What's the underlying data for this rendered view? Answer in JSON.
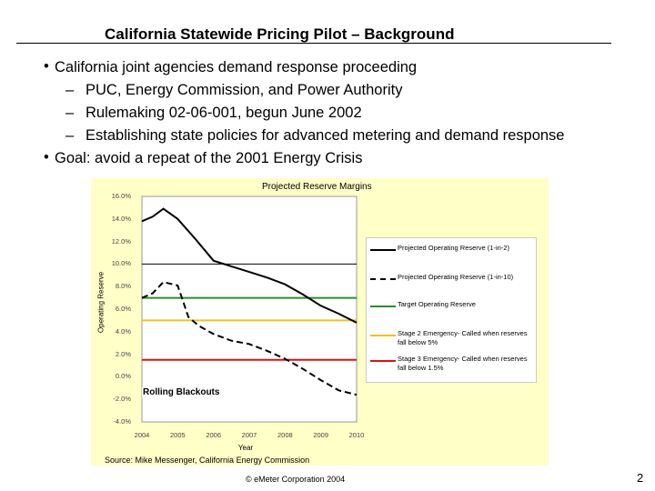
{
  "slide": {
    "title": "California Statewide Pricing Pilot – Background",
    "bullets": [
      {
        "text": "California joint agencies demand response proceeding",
        "subs": [
          "PUC, Energy Commission, and Power Authority",
          "Rulemaking 02-06-001, begun June 2002",
          "Establishing state policies for advanced metering and demand response"
        ]
      },
      {
        "text": "Goal: avoid a repeat of the 2001 Energy Crisis",
        "subs": []
      }
    ],
    "dash": "–",
    "footer": "© eMeter Corporation 2004",
    "page_number": "2"
  },
  "colors": {
    "chart_bg": "#ffffc8",
    "target": "#2e8b2e",
    "stage2": "#f0c020",
    "stage3": "#e01010",
    "reserve_line": "#000000"
  },
  "chart_data": {
    "type": "line",
    "title": "Projected Reserve Margins",
    "xlabel": "Year",
    "ylabel": "Operating Reserve",
    "x_ticks": [
      "2004",
      "2005",
      "2006",
      "2007",
      "2008",
      "2009",
      "2010"
    ],
    "y_ticks": [
      "16.0%",
      "14.0%",
      "12.0%",
      "10.0%",
      "8.0%",
      "6.0%",
      "4.0%",
      "2.0%",
      "0.0%",
      "-2.0%",
      "-4.0%"
    ],
    "ylim": [
      -4,
      16
    ],
    "xlim": [
      2004,
      2010
    ],
    "series": [
      {
        "name": "Projected Operating Reserve (1-in-2)",
        "style": "solid",
        "x": [
          2004,
          2004.3,
          2004.6,
          2005,
          2005.5,
          2006,
          2006.5,
          2007,
          2007.5,
          2008,
          2008.5,
          2009,
          2009.5,
          2010
        ],
        "y": [
          13.8,
          14.2,
          14.9,
          14.0,
          12.2,
          10.3,
          9.8,
          9.3,
          8.8,
          8.2,
          7.3,
          6.3,
          5.6,
          4.8
        ]
      },
      {
        "name": "Projected Operating Reserve (1-in-10)",
        "style": "dashed",
        "x": [
          2004,
          2004.3,
          2004.6,
          2005,
          2005.3,
          2005.6,
          2006,
          2006.5,
          2007,
          2007.5,
          2008,
          2008.5,
          2009,
          2009.5,
          2010
        ],
        "y": [
          7.0,
          7.4,
          8.4,
          8.1,
          5.3,
          4.5,
          3.8,
          3.2,
          2.9,
          2.3,
          1.6,
          0.7,
          -0.3,
          -1.2,
          -1.6
        ]
      }
    ],
    "reference_lines": [
      {
        "name": "Target Operating Reserve",
        "value": 7.0,
        "color": "#2e8b2e"
      },
      {
        "name": "Stage 2 Emergency- Called when reserves fall below 5%",
        "value": 5.0,
        "color": "#f0c020"
      },
      {
        "name": "Stage 3 Emergency- Called when reserves fall below 1.5%",
        "value": 1.5,
        "color": "#e01010"
      }
    ],
    "annotation": "Rolling Blackouts",
    "source": "Source: Mike Messenger, California Energy Commission",
    "legend_position": "right",
    "grid": false
  }
}
